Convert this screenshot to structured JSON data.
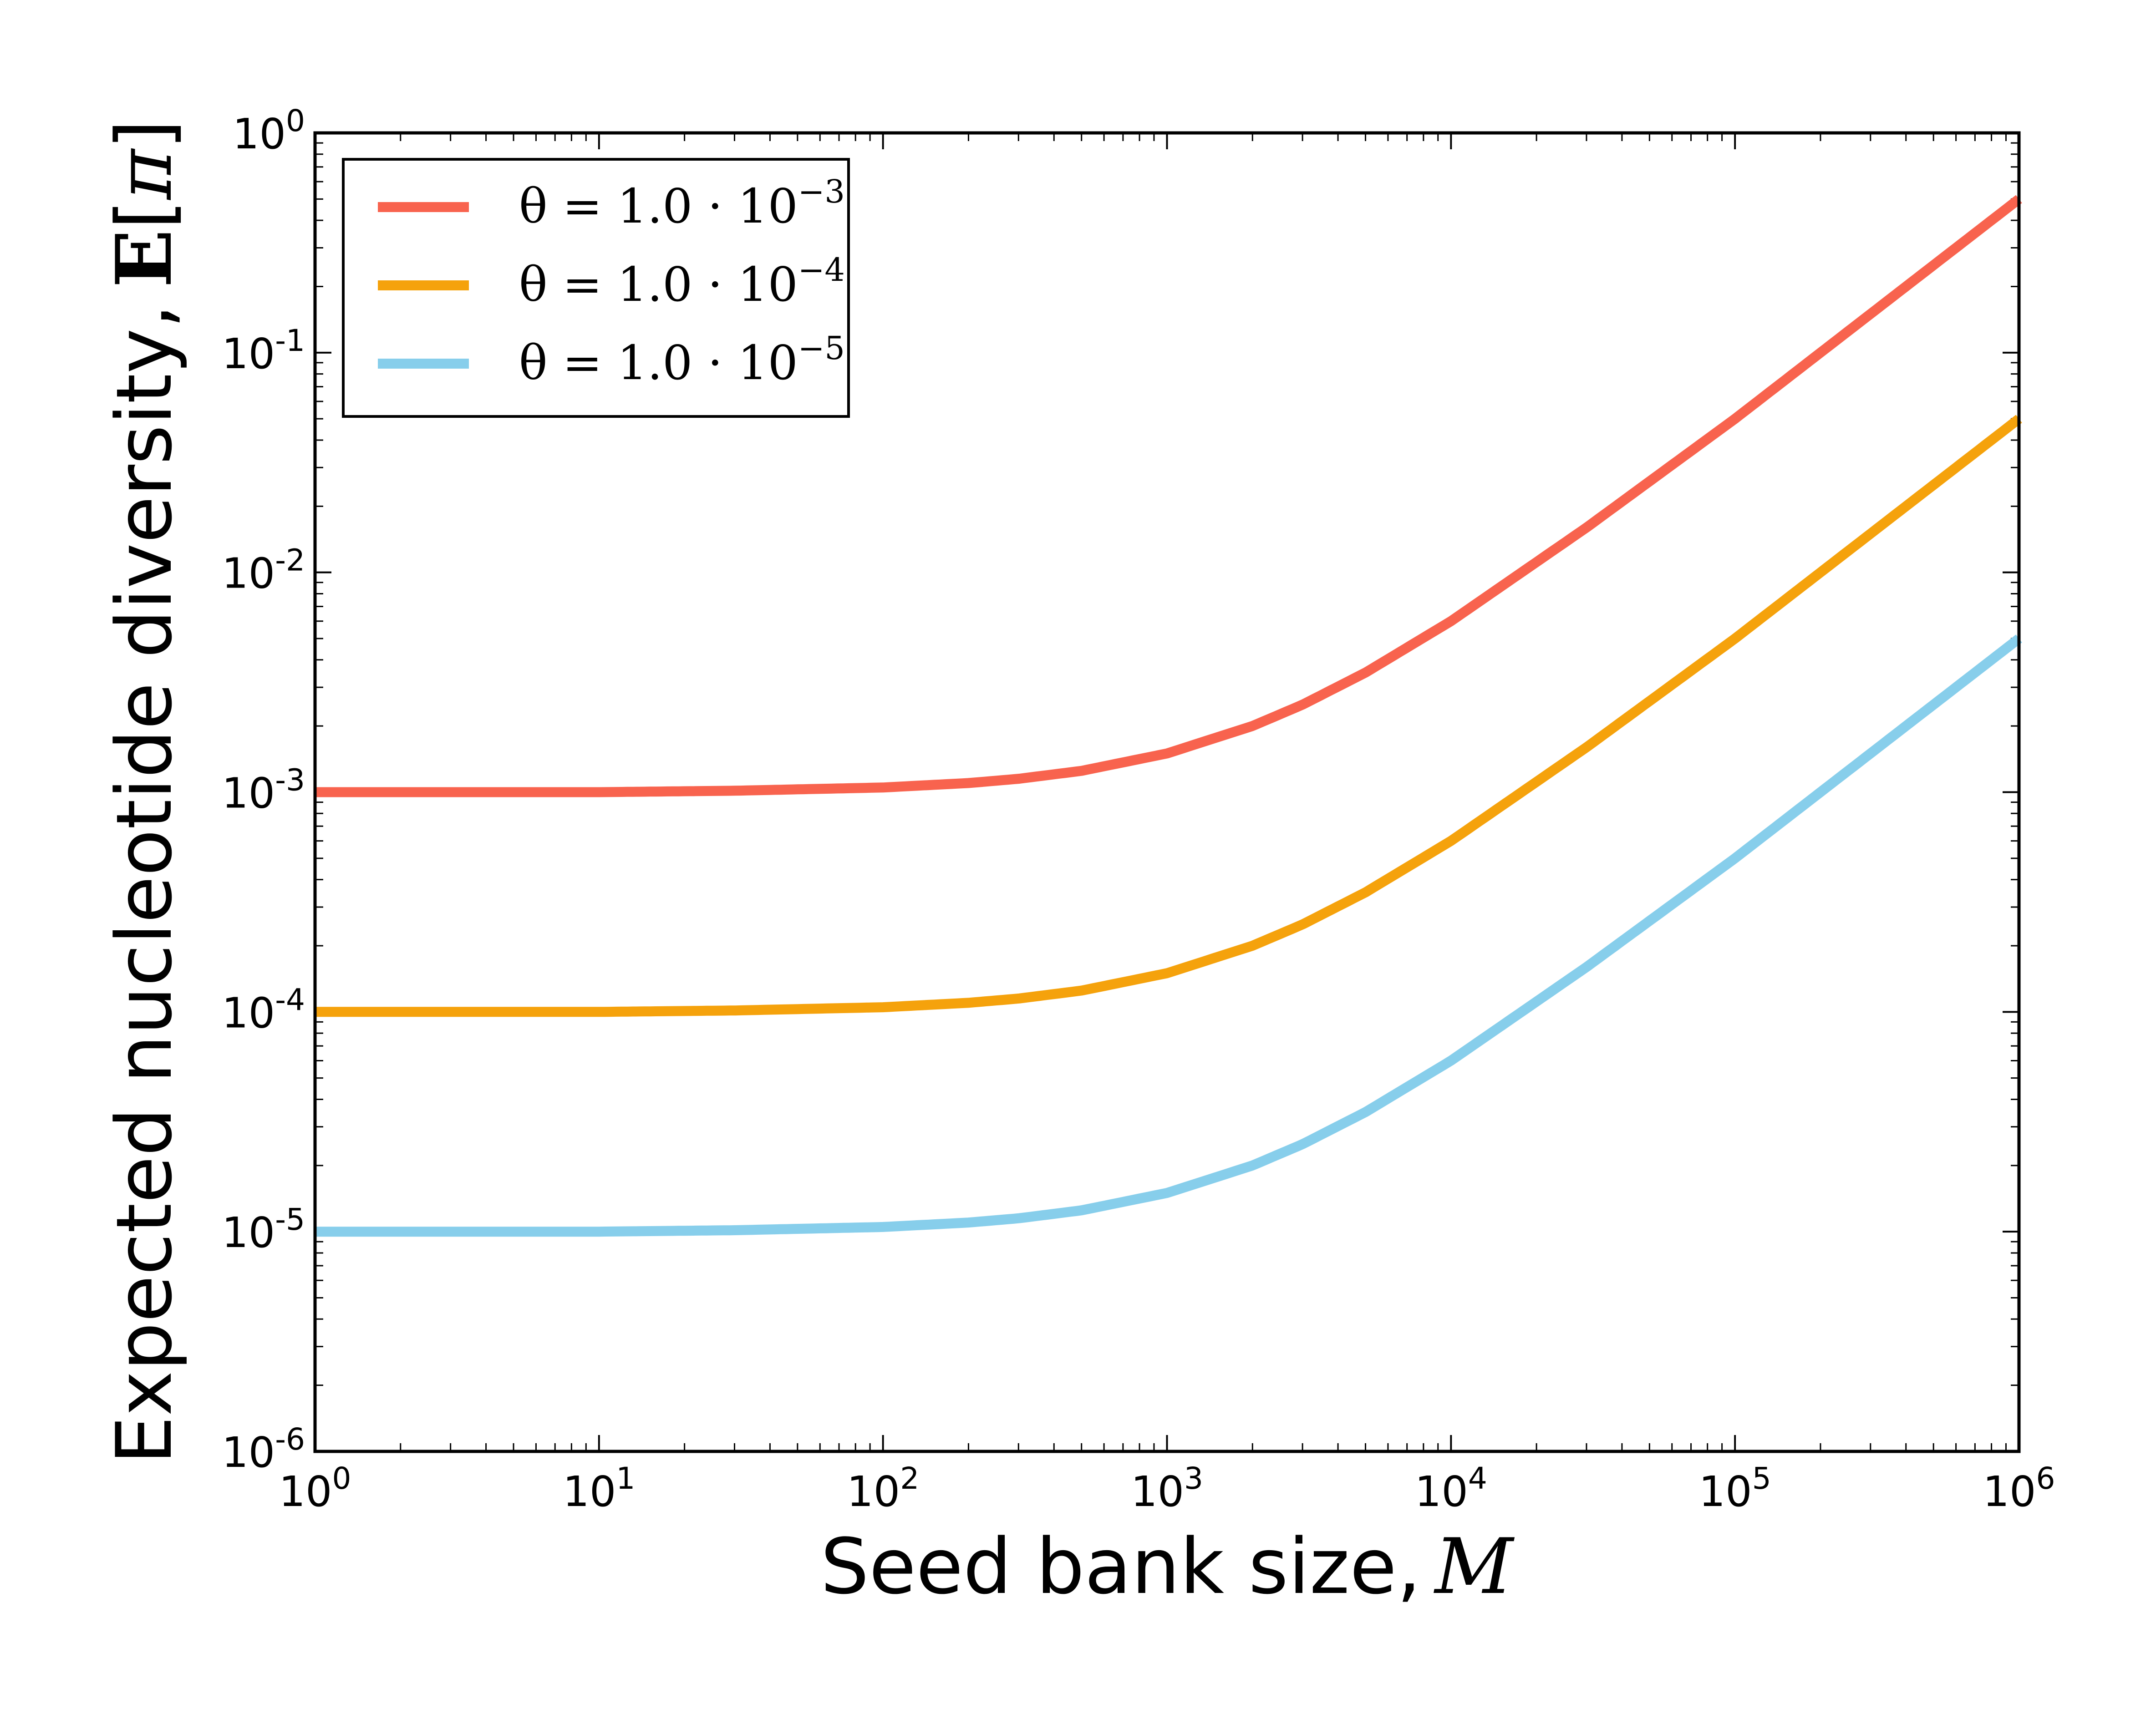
{
  "chart_data": {
    "type": "line",
    "title": "",
    "xlabel": "Seed bank size,",
    "xlabel_symbol": "M",
    "ylabel": "Expected nucleotide diversity,",
    "ylabel_symbol_bold": "E",
    "ylabel_symbol": "π",
    "xscale": "log",
    "yscale": "log",
    "xlim": [
      1,
      1000000
    ],
    "ylim": [
      1e-06,
      1
    ],
    "x_ticks": [
      {
        "base": "10",
        "exp": "0"
      },
      {
        "base": "10",
        "exp": "1"
      },
      {
        "base": "10",
        "exp": "2"
      },
      {
        "base": "10",
        "exp": "3"
      },
      {
        "base": "10",
        "exp": "4"
      },
      {
        "base": "10",
        "exp": "5"
      },
      {
        "base": "10",
        "exp": "6"
      }
    ],
    "y_ticks": [
      {
        "base": "10",
        "exp": "-6"
      },
      {
        "base": "10",
        "exp": "-5"
      },
      {
        "base": "10",
        "exp": "-4"
      },
      {
        "base": "10",
        "exp": "-3"
      },
      {
        "base": "10",
        "exp": "-2"
      },
      {
        "base": "10",
        "exp": "-1"
      },
      {
        "base": "10",
        "exp": "0"
      }
    ],
    "grid": false,
    "legend_position": "top-left",
    "x": [
      1,
      3,
      10,
      30,
      100,
      200,
      300,
      500,
      1000,
      2000,
      3000,
      5000,
      10000,
      30000,
      100000,
      300000,
      1000000
    ],
    "series": [
      {
        "name": "θ = 1.0 · 10",
        "name_exp": "−3",
        "color": "#f8634e",
        "values": [
          0.001,
          0.001,
          0.001,
          0.001015,
          0.00105,
          0.0011,
          0.00115,
          0.00125,
          0.0015,
          0.002,
          0.0025,
          0.0035,
          0.006,
          0.016,
          0.05,
          0.15,
          0.5
        ]
      },
      {
        "name": "θ = 1.0 · 10",
        "name_exp": "−4",
        "color": "#f5a20c",
        "values": [
          0.0001,
          0.0001,
          0.0001,
          0.0001015,
          0.000105,
          0.00011,
          0.000115,
          0.000125,
          0.00015,
          0.0002,
          0.00025,
          0.00035,
          0.0006,
          0.0016,
          0.005,
          0.015,
          0.05
        ]
      },
      {
        "name": "θ = 1.0 · 10",
        "name_exp": "−5",
        "color": "#87ceeb",
        "values": [
          1e-05,
          1e-05,
          1e-05,
          1.015e-05,
          1.05e-05,
          1.1e-05,
          1.15e-05,
          1.25e-05,
          1.5e-05,
          2e-05,
          2.5e-05,
          3.5e-05,
          6e-05,
          0.00016,
          0.0005,
          0.0015,
          0.005
        ]
      }
    ]
  }
}
